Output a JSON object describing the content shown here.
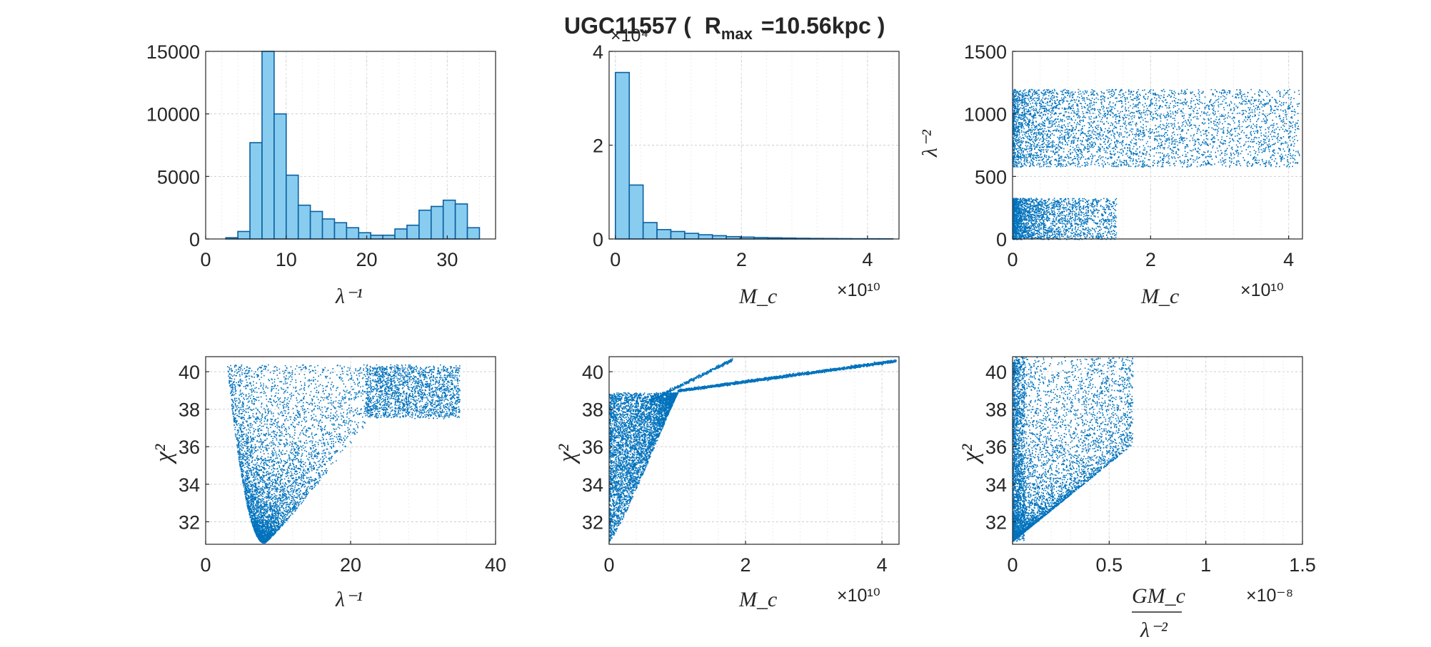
{
  "figure": {
    "title_prefix": "UGC11557 (",
    "title_r": "R",
    "title_sub": "max",
    "title_suffix": "=10.56kpc )"
  },
  "colors": {
    "scatter": "#0072bd",
    "bar_fill": "#88cdf0",
    "bar_edge": "#0c5fa0",
    "axis": "#262626",
    "grid": "#cfcfcf"
  },
  "chart_data": [
    {
      "id": "hist-lambda-inv",
      "type": "bar",
      "xlabel": "λ⁻¹",
      "xlim": [
        0,
        36
      ],
      "ylim": [
        0,
        15000
      ],
      "xticks": [
        0,
        10,
        20,
        30
      ],
      "yticks": [
        0,
        5000,
        10000,
        15000
      ],
      "bin_start": 1,
      "bin_width": 1.5,
      "values": [
        0,
        100,
        600,
        7700,
        15000,
        10000,
        5100,
        2700,
        2200,
        1600,
        1300,
        900,
        500,
        300,
        300,
        800,
        1100,
        2300,
        2600,
        3100,
        2800,
        900,
        0
      ]
    },
    {
      "id": "hist-mc",
      "type": "bar",
      "xlabel": "M_c",
      "x_exponent": "×10¹⁰",
      "y_exponent": "×10⁴",
      "xlim": [
        -0.1,
        4.5
      ],
      "ylim": [
        0,
        4
      ],
      "xticks": [
        0,
        2,
        4
      ],
      "yticks": [
        0,
        2,
        4
      ],
      "bin_start": 0,
      "bin_width": 0.22,
      "values": [
        3.55,
        1.15,
        0.35,
        0.2,
        0.16,
        0.12,
        0.09,
        0.07,
        0.05,
        0.04,
        0.03,
        0.025,
        0.02,
        0.015,
        0.012,
        0.01,
        0.008,
        0.006,
        0.005,
        0.004
      ]
    },
    {
      "id": "scatter-mc-lambda2",
      "type": "scatter",
      "xlabel": "M_c",
      "ylabel": "λ⁻²",
      "x_exponent": "×10¹⁰",
      "xlim": [
        0,
        4.2
      ],
      "ylim": [
        0,
        1500
      ],
      "xticks": [
        0,
        2,
        4
      ],
      "yticks": [
        0,
        500,
        1000,
        1500
      ],
      "clusters": [
        {
          "x_range": [
            0,
            4.15
          ],
          "y_range": [
            580,
            1200
          ],
          "density": "high near x=0, decreasing to 4.1"
        },
        {
          "x_range": [
            0,
            1.5
          ],
          "y_range": [
            0,
            330
          ],
          "density": "very high near x=0–0.5"
        }
      ]
    },
    {
      "id": "scatter-lambda-chi2",
      "type": "scatter",
      "xlabel": "λ⁻¹",
      "ylabel": "χ²",
      "xlim": [
        0,
        40
      ],
      "ylim": [
        30.8,
        40.8
      ],
      "xticks": [
        0,
        20,
        40
      ],
      "yticks": [
        32,
        34,
        36,
        38,
        40
      ],
      "clusters": [
        {
          "shape": "parabolic band",
          "vertex": [
            8,
            30.9
          ],
          "left_edge_at_y40": 3,
          "right_edge": [
            [
              10,
              32
            ],
            [
              20,
              37.5
            ]
          ]
        },
        {
          "shape": "blob",
          "x_range": [
            22,
            35
          ],
          "y_range": [
            37.5,
            40.3
          ]
        }
      ]
    },
    {
      "id": "scatter-mc-chi2",
      "type": "scatter",
      "xlabel": "M_c",
      "ylabel": "χ²",
      "x_exponent": "×10¹⁰",
      "xlim": [
        0,
        4.25
      ],
      "ylim": [
        30.8,
        40.8
      ],
      "xticks": [
        0,
        2,
        4
      ],
      "yticks": [
        32,
        34,
        36,
        38,
        40
      ],
      "clusters": [
        {
          "shape": "fan",
          "x_range": [
            0,
            1
          ],
          "y_range": [
            30.8,
            38.8
          ]
        },
        {
          "shape": "band",
          "from": [
            1,
            39
          ],
          "to": [
            4.2,
            40.6
          ]
        }
      ]
    },
    {
      "id": "scatter-ratio-chi2",
      "type": "scatter",
      "xlabel_num": "GM_c",
      "xlabel_den": "λ⁻²",
      "ylabel": "χ²",
      "x_exponent": "×10⁻⁸",
      "xlim": [
        0,
        1.5
      ],
      "ylim": [
        30.8,
        40.8
      ],
      "xticks": [
        0,
        0.5,
        1,
        1.5
      ],
      "yticks": [
        32,
        34,
        36,
        38,
        40
      ],
      "clusters": [
        {
          "shape": "wedge",
          "from": [
            0,
            31
          ],
          "to": [
            0.6,
            36
          ],
          "spread_up_to_y": 40.8
        }
      ]
    }
  ]
}
